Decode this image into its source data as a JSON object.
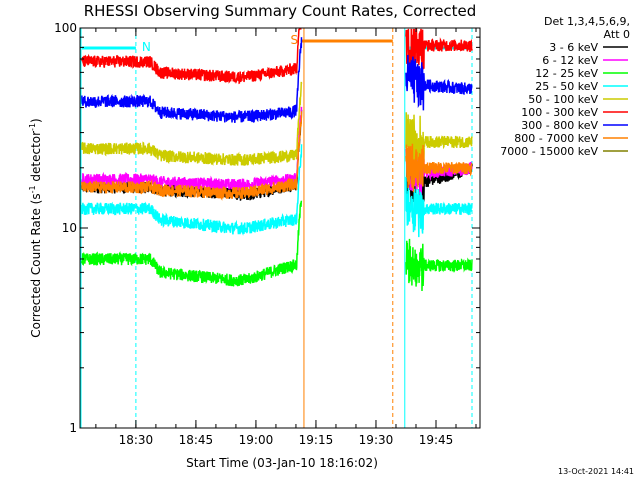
{
  "chart_data": {
    "type": "line",
    "title": "RHESSI Observing Summary Count Rates, Corrected",
    "xlabel": "Start Time (03-Jan-10 18:16:02)",
    "ylabel_main": "Corrected Count Rate (s",
    "ylabel_sup1": "-1",
    "ylabel_mid": " detector",
    "ylabel_sup2": "-1",
    "ylabel_end": ")",
    "y_scale": "log",
    "ylim": [
      1,
      100
    ],
    "xlim": [
      18.2672,
      19.9333
    ],
    "y_ticks": [
      {
        "value": 1,
        "label": "1"
      },
      {
        "value": 10,
        "label": "10"
      },
      {
        "value": 100,
        "label": "100"
      }
    ],
    "x_ticks": [
      {
        "value": 18.5,
        "label": "18:30"
      },
      {
        "value": 18.75,
        "label": "18:45"
      },
      {
        "value": 19.0,
        "label": "19:00"
      },
      {
        "value": 19.25,
        "label": "19:15"
      },
      {
        "value": 19.5,
        "label": "19:30"
      },
      {
        "value": 19.75,
        "label": "19:45"
      }
    ],
    "legend_header": [
      "Det 1,3,4,5,6,9,",
      "Att 0"
    ],
    "legend_placement": "right",
    "series": [
      {
        "name": "3 - 6 keV",
        "color": "#000000",
        "x": [
          18.27,
          18.56,
          18.6,
          18.9,
          18.96,
          19.15,
          19.6,
          19.7,
          19.85,
          19.9
        ],
        "values": [
          16,
          16,
          15.5,
          15,
          14.5,
          16.5,
          18,
          17,
          19,
          20
        ]
      },
      {
        "name": "6 - 12 keV",
        "color": "#ff00ff",
        "x": [
          18.27,
          18.56,
          18.6,
          18.9,
          18.96,
          19.15,
          19.6,
          19.7,
          19.85,
          19.9
        ],
        "values": [
          17.5,
          17.5,
          17,
          16.5,
          16.5,
          17.5,
          21,
          19,
          19.5,
          20
        ]
      },
      {
        "name": "12 - 25 keV",
        "color": "#00ff00",
        "x": [
          18.27,
          18.56,
          18.6,
          18.9,
          18.96,
          19.15,
          19.6,
          19.7,
          19.85,
          19.9
        ],
        "values": [
          7,
          7,
          6,
          5.5,
          5.5,
          6.5,
          7,
          6.5,
          6.5,
          6.5
        ]
      },
      {
        "name": "25 - 50 keV",
        "color": "#00ffff",
        "x": [
          18.27,
          18.56,
          18.6,
          18.9,
          18.96,
          19.15,
          19.6,
          19.7,
          19.85,
          19.9
        ],
        "values": [
          12.5,
          12.5,
          11,
          10,
          10,
          11,
          14,
          12.5,
          12.5,
          12.5
        ]
      },
      {
        "name": "50 - 100 keV",
        "color": "#cccc00",
        "x": [
          18.27,
          18.56,
          18.6,
          18.9,
          18.96,
          19.15,
          19.6,
          19.7,
          19.85,
          19.9
        ],
        "values": [
          25,
          25,
          23,
          22,
          22,
          23,
          30,
          27,
          27,
          27
        ]
      },
      {
        "name": "100 - 300 keV",
        "color": "#ff0000",
        "x": [
          18.27,
          18.56,
          18.6,
          18.9,
          18.96,
          19.15,
          19.6,
          19.7,
          19.85,
          19.9
        ],
        "values": [
          68,
          68,
          60,
          57,
          57,
          62,
          90,
          82,
          82,
          82
        ]
      },
      {
        "name": "300 - 800 keV",
        "color": "#0000ff",
        "x": [
          18.27,
          18.56,
          18.6,
          18.9,
          18.96,
          19.15,
          19.6,
          19.7,
          19.85,
          19.9
        ],
        "values": [
          43,
          43,
          38,
          36,
          36,
          38,
          60,
          52,
          50,
          50
        ]
      },
      {
        "name": "800 - 7000 keV",
        "color": "#ff8000",
        "x": [
          18.27,
          18.56,
          18.6,
          18.9,
          18.96,
          19.15,
          19.6,
          19.7,
          19.85,
          19.9
        ],
        "values": [
          16,
          16,
          15.5,
          15,
          15,
          16.5,
          21,
          20,
          20,
          20
        ]
      },
      {
        "name": "7000 - 15000 keV",
        "color": "#808000",
        "x": [
          18.27,
          18.56,
          18.6,
          18.9,
          18.96,
          19.15,
          19.6,
          19.7,
          19.85,
          19.9
        ],
        "values": [
          null,
          null,
          null,
          null,
          null,
          null,
          null,
          null,
          null,
          null
        ]
      }
    ],
    "markers": [
      {
        "label": "N",
        "x": 18.5,
        "color": "#00ffff"
      },
      {
        "label": "S",
        "x": 19.19,
        "color": "#ff8000"
      }
    ],
    "timestamp": "13-Oct-2021 14:41"
  }
}
